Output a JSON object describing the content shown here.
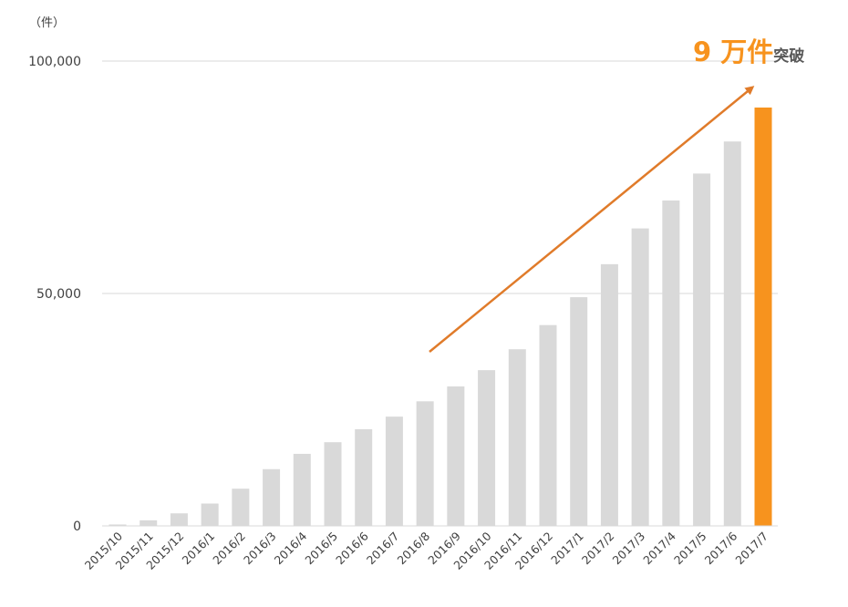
{
  "chart_data": {
    "type": "bar",
    "unit_label": "（件）",
    "categories": [
      "2015/10",
      "2015/11",
      "2015/12",
      "2016/1",
      "2016/2",
      "2016/3",
      "2016/4",
      "2016/5",
      "2016/6",
      "2016/7",
      "2016/8",
      "2016/9",
      "2016/10",
      "2016/11",
      "2016/12",
      "2017/1",
      "2017/2",
      "2017/3",
      "2017/4",
      "2017/5",
      "2017/6",
      "2017/7"
    ],
    "values": [
      300,
      1200,
      2700,
      4800,
      8000,
      12200,
      15500,
      18000,
      20800,
      23500,
      26800,
      30000,
      33500,
      38000,
      43200,
      49200,
      56300,
      64000,
      70000,
      75800,
      82700,
      90000
    ],
    "ylim": [
      0,
      100000
    ],
    "yticks": [
      {
        "value": 0,
        "label": "0"
      },
      {
        "value": 50000,
        "label": "50,000"
      },
      {
        "value": 100000,
        "label": "100,000"
      }
    ],
    "grid": true,
    "bar_color": "#d9d9d9",
    "highlight_index": 21,
    "highlight_color": "#f7931e",
    "arrow_color": "#e07b2a",
    "callout": {
      "big_text": "9 万件",
      "small_text": "突破",
      "big_color": "#f7931e",
      "small_color": "#595959"
    }
  }
}
